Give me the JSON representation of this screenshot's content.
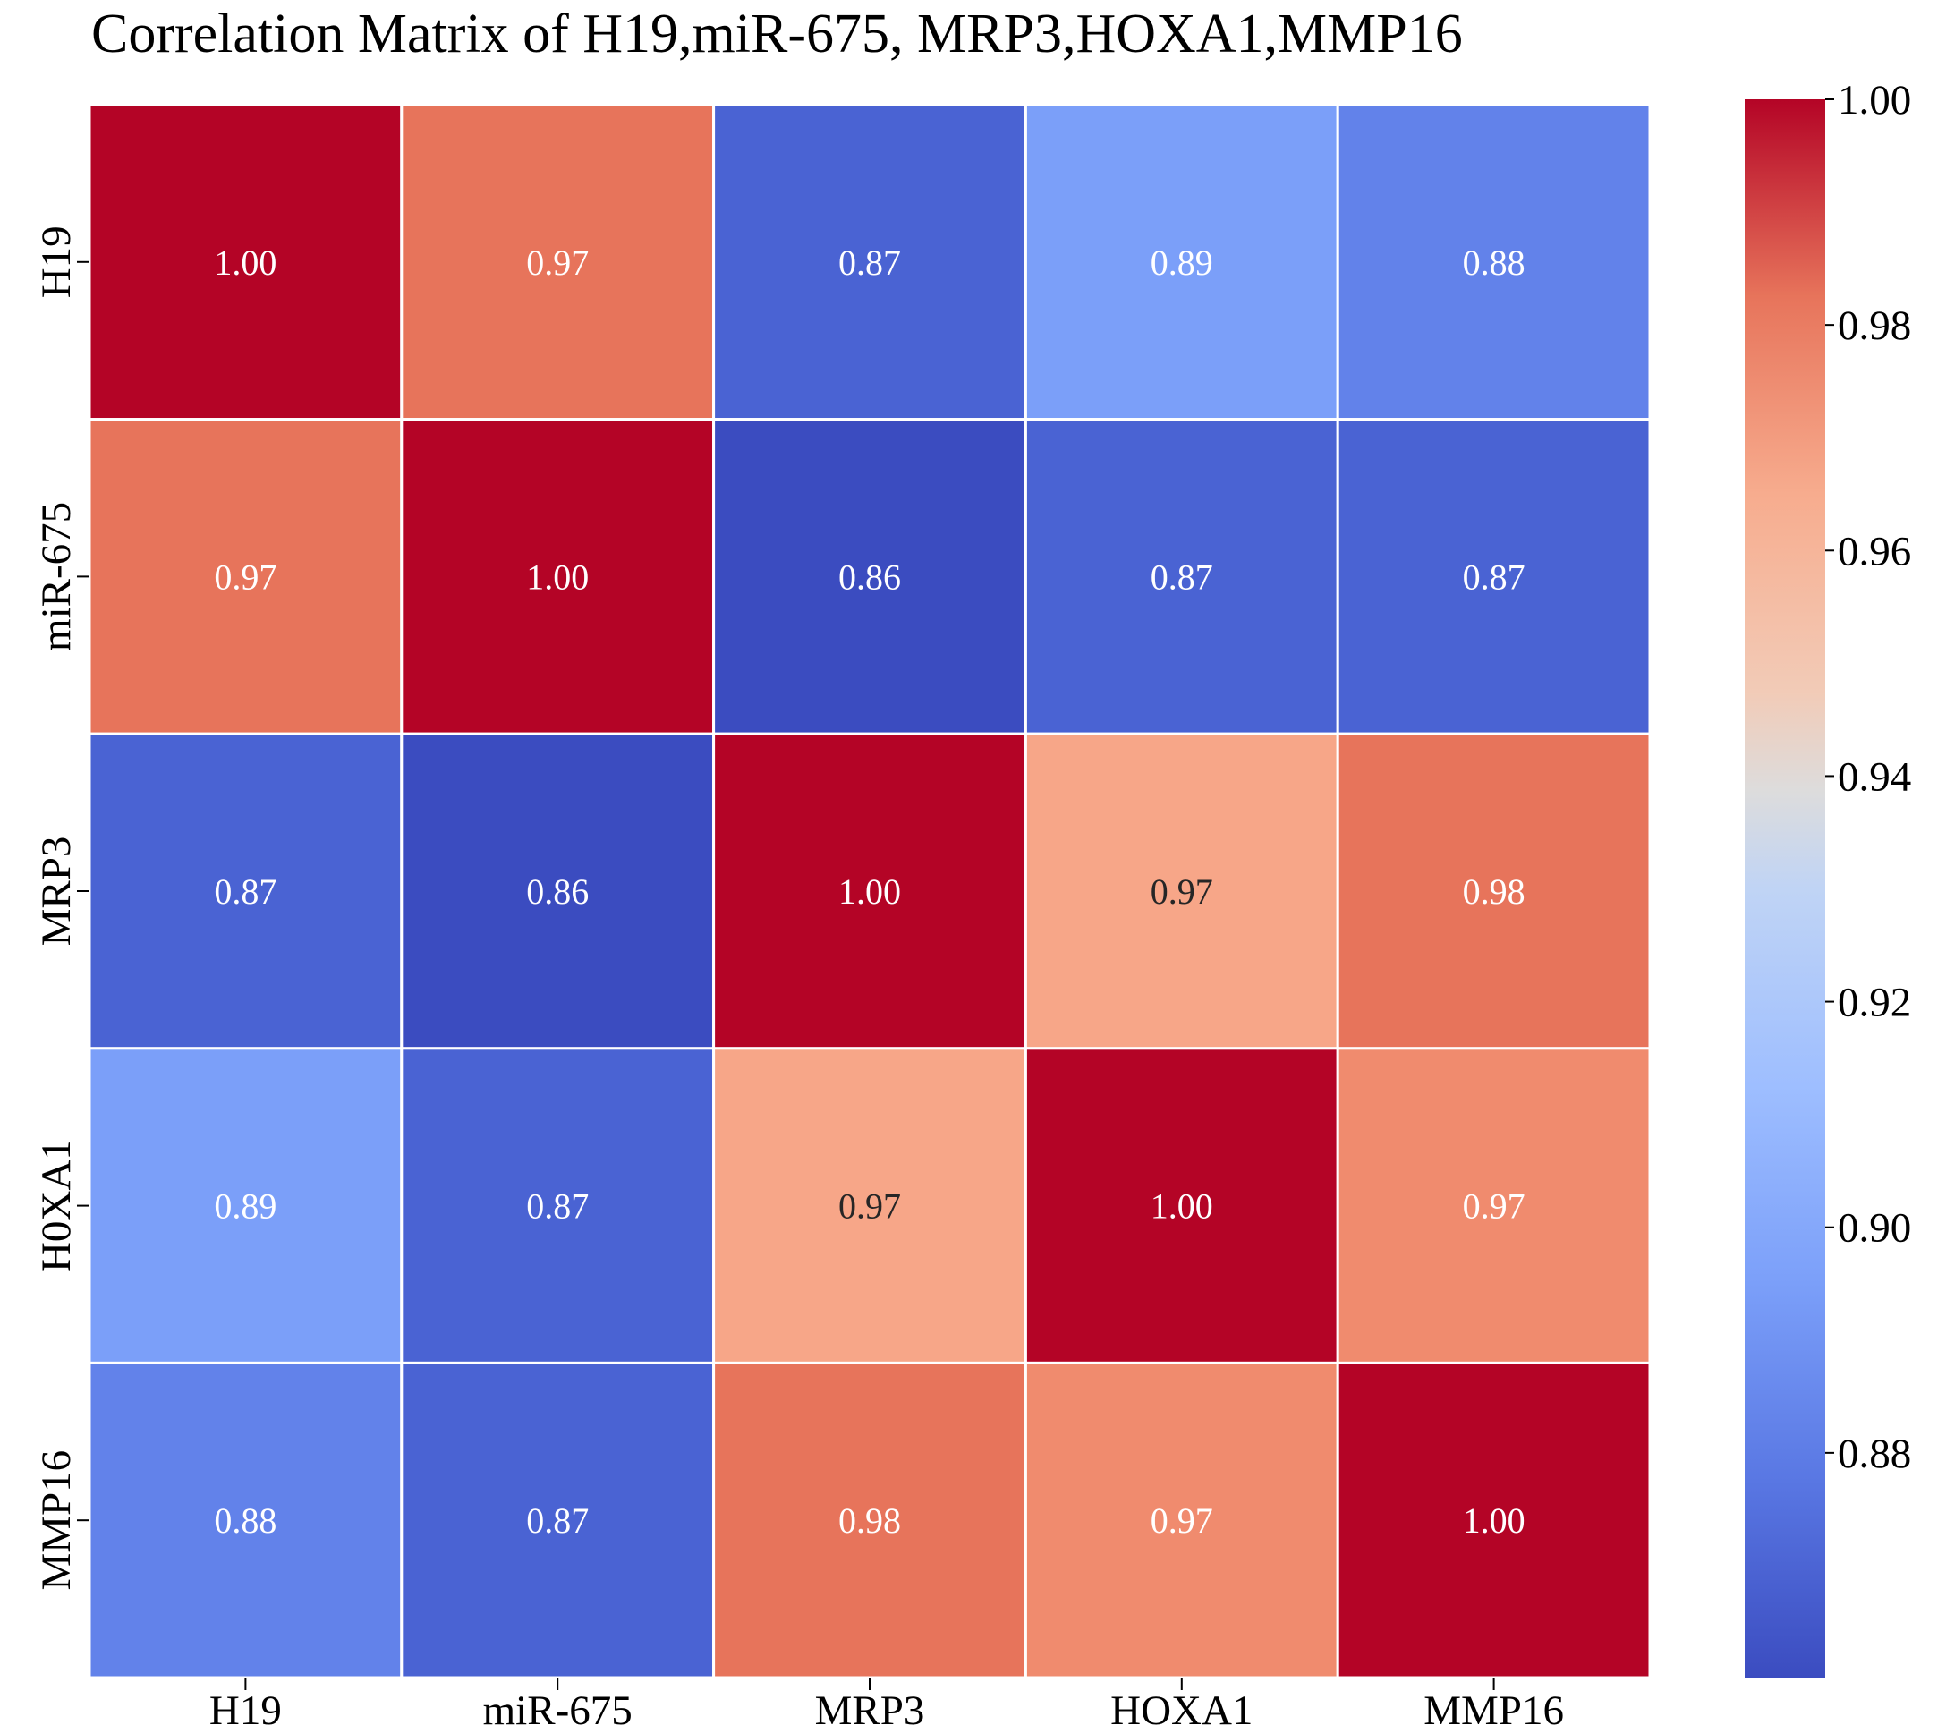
{
  "chart_data": {
    "type": "heatmap",
    "title": "Correlation Matrix of H19,miR-675, MRP3,HOXA1,MMP16",
    "x_categories": [
      "H19",
      "miR-675",
      "MRP3",
      "HOXA1",
      "MMP16"
    ],
    "y_categories": [
      "H19",
      "miR-675",
      "MRP3",
      "H0XA1",
      "MMP16"
    ],
    "values": [
      [
        1.0,
        0.97,
        0.87,
        0.89,
        0.88
      ],
      [
        0.97,
        1.0,
        0.86,
        0.87,
        0.87
      ],
      [
        0.87,
        0.86,
        1.0,
        0.97,
        0.98
      ],
      [
        0.89,
        0.87,
        0.97,
        1.0,
        0.97
      ],
      [
        0.88,
        0.87,
        0.98,
        0.97,
        1.0
      ]
    ],
    "value_labels": [
      [
        "1.00",
        "0.97",
        "0.87",
        "0.89",
        "0.88"
      ],
      [
        "0.97",
        "1.00",
        "0.86",
        "0.87",
        "0.87"
      ],
      [
        "0.87",
        "0.86",
        "1.00",
        "0.97",
        "0.98"
      ],
      [
        "0.89",
        "0.87",
        "0.97",
        "1.00",
        "0.97"
      ],
      [
        "0.88",
        "0.87",
        "0.98",
        "0.97",
        "1.00"
      ]
    ],
    "cell_colors": [
      [
        "#b40426",
        "#e7745b",
        "#4a63d3",
        "#7b9ff9",
        "#6282ea"
      ],
      [
        "#e7745b",
        "#b40426",
        "#3b4cc0",
        "#4a63d3",
        "#4a63d3"
      ],
      [
        "#4a63d3",
        "#3b4cc0",
        "#b40426",
        "#f7a688",
        "#e7745b"
      ],
      [
        "#7b9ff9",
        "#4a63d3",
        "#f7a688",
        "#b40426",
        "#f08b6e"
      ],
      [
        "#6282ea",
        "#4a63d3",
        "#e7745b",
        "#f08b6e",
        "#b40426"
      ]
    ],
    "text_colors": [
      [
        "#ffffff",
        "#ffffff",
        "#ffffff",
        "#ffffff",
        "#ffffff"
      ],
      [
        "#ffffff",
        "#ffffff",
        "#ffffff",
        "#ffffff",
        "#ffffff"
      ],
      [
        "#ffffff",
        "#ffffff",
        "#ffffff",
        "#262626",
        "#ffffff"
      ],
      [
        "#ffffff",
        "#ffffff",
        "#262626",
        "#ffffff",
        "#ffffff"
      ],
      [
        "#ffffff",
        "#ffffff",
        "#ffffff",
        "#ffffff",
        "#ffffff"
      ]
    ],
    "colorbar": {
      "range": [
        0.86,
        1.0
      ],
      "ticks": [
        0.88,
        0.9,
        0.92,
        0.94,
        0.96,
        0.98,
        1.0
      ],
      "tick_labels": [
        "0.88",
        "0.90",
        "0.92",
        "0.94",
        "0.96",
        "0.98",
        "1.00"
      ],
      "colormap": "coolwarm",
      "stops": [
        {
          "offset": 0.0,
          "color": "#3b4cc0"
        },
        {
          "offset": 0.125,
          "color": "#5977e3"
        },
        {
          "offset": 0.25,
          "color": "#7b9ff9"
        },
        {
          "offset": 0.375,
          "color": "#9ebeff"
        },
        {
          "offset": 0.5,
          "color": "#c0d4f5"
        },
        {
          "offset": 0.5625,
          "color": "#dddcdc"
        },
        {
          "offset": 0.625,
          "color": "#f2cbb7"
        },
        {
          "offset": 0.75,
          "color": "#f7ac8e"
        },
        {
          "offset": 0.875,
          "color": "#e7745b"
        },
        {
          "offset": 1.0,
          "color": "#b40426"
        }
      ]
    },
    "grid_line_color": "#ffffff",
    "legend": "right"
  }
}
